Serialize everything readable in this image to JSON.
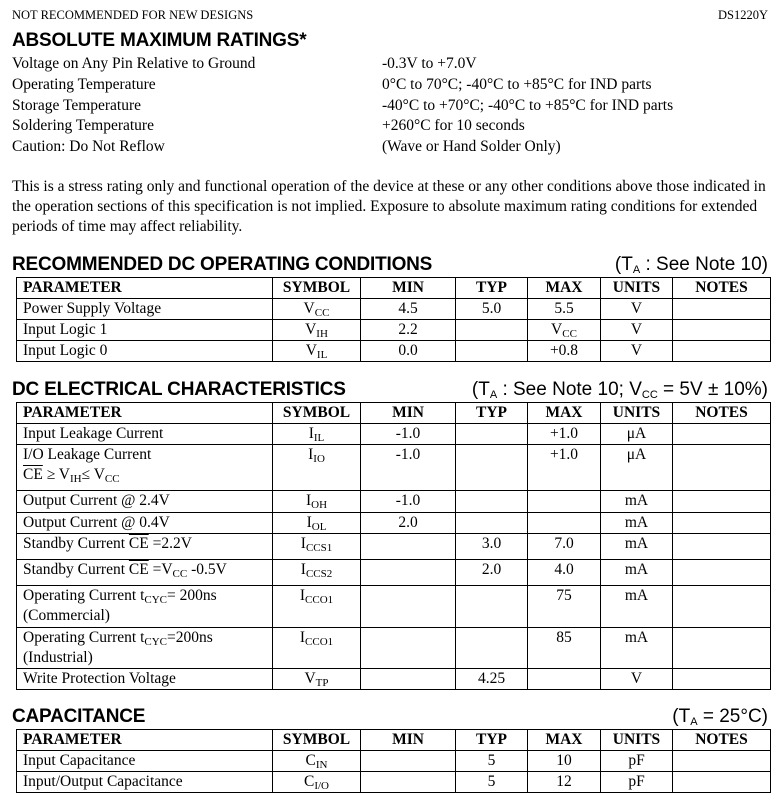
{
  "header": {
    "left": "NOT RECOMMENDED FOR NEW DESIGNS",
    "right": "DS1220Y"
  },
  "abs_max": {
    "title": "ABSOLUTE MAXIMUM RATINGS*",
    "rows": [
      {
        "k": "Voltage on Any Pin Relative to Ground",
        "v": "-0.3V to +7.0V"
      },
      {
        "k": "Operating Temperature",
        "v": "0°C to 70°C; -40°C to +85°C for IND parts"
      },
      {
        "k": "Storage Temperature",
        "v": "-40°C to +70°C; -40°C to +85°C for IND parts"
      },
      {
        "k": "Soldering Temperature",
        "v": "+260°C for 10 seconds"
      },
      {
        "k": "Caution: Do Not Reflow",
        "v": "(Wave or Hand Solder Only)"
      }
    ],
    "note": "This is a stress rating only and functional operation of the device at these or any other conditions above those indicated in the operation sections of this specification is not implied. Exposure to absolute maximum rating conditions for extended periods of time may affect reliability."
  },
  "columns": [
    "PARAMETER",
    "SYMBOL",
    "MIN",
    "TYP",
    "MAX",
    "UNITS",
    "NOTES"
  ],
  "tables": [
    {
      "title": "RECOMMENDED DC OPERATING CONDITIONS",
      "cond": [
        {
          "t": "(T"
        },
        {
          "t": "A",
          "sub": 1
        },
        {
          "t": " : See Note 10)"
        }
      ],
      "rows": [
        [
          [
            {
              "t": "Power Supply Voltage"
            }
          ],
          [
            {
              "t": "V"
            },
            {
              "t": "CC",
              "sub": 1
            }
          ],
          [
            {
              "t": "4.5"
            }
          ],
          [
            {
              "t": "5.0"
            }
          ],
          [
            {
              "t": "5.5"
            }
          ],
          [
            {
              "t": "V"
            }
          ],
          []
        ],
        [
          [
            {
              "t": "Input Logic 1"
            }
          ],
          [
            {
              "t": "V"
            },
            {
              "t": "IH",
              "sub": 1
            }
          ],
          [
            {
              "t": "2.2"
            }
          ],
          [],
          [
            {
              "t": "V"
            },
            {
              "t": "CC",
              "sub": 1
            }
          ],
          [
            {
              "t": "V"
            }
          ],
          []
        ],
        [
          [
            {
              "t": "Input Logic 0"
            }
          ],
          [
            {
              "t": "V"
            },
            {
              "t": "IL",
              "sub": 1
            }
          ],
          [
            {
              "t": "0.0"
            }
          ],
          [],
          [
            {
              "t": "+0.8"
            }
          ],
          [
            {
              "t": "V"
            }
          ],
          []
        ]
      ]
    },
    {
      "title": "DC ELECTRICAL CHARACTERISTICS",
      "cond": [
        {
          "t": "(T"
        },
        {
          "t": "A",
          "sub": 1
        },
        {
          "t": " : See Note 10; V"
        },
        {
          "t": "CC",
          "sub": 1
        },
        {
          "t": " = 5V ± 10%)"
        }
      ],
      "rows": [
        [
          [
            {
              "t": "Input Leakage Current"
            }
          ],
          [
            {
              "t": "I"
            },
            {
              "t": "IL",
              "sub": 1
            }
          ],
          [
            {
              "t": "-1.0"
            }
          ],
          [],
          [
            {
              "t": "+1.0"
            }
          ],
          [
            {
              "t": "μA"
            }
          ],
          []
        ],
        [
          [
            {
              "t": "I/O Leakage Current"
            },
            {
              "br": 1
            },
            {
              "t": "CE",
              "ov": 1
            },
            {
              "t": " ≥ V"
            },
            {
              "t": "IH",
              "sub": 1
            },
            {
              "t": "≤ V"
            },
            {
              "t": "CC",
              "sub": 1
            }
          ],
          [
            {
              "t": "I"
            },
            {
              "t": "IO",
              "sub": 1
            }
          ],
          [
            {
              "t": "-1.0"
            }
          ],
          [],
          [
            {
              "t": "+1.0"
            }
          ],
          [
            {
              "t": "μA"
            }
          ],
          []
        ],
        [
          [
            {
              "t": "Output Current @ 2.4V"
            }
          ],
          [
            {
              "t": "I"
            },
            {
              "t": "OH",
              "sub": 1
            }
          ],
          [
            {
              "t": "-1.0"
            }
          ],
          [],
          [],
          [
            {
              "t": "mA"
            }
          ],
          []
        ],
        [
          [
            {
              "t": "Output Current @ 0.4V"
            }
          ],
          [
            {
              "t": "I"
            },
            {
              "t": "OL",
              "sub": 1
            }
          ],
          [
            {
              "t": "2.0"
            }
          ],
          [],
          [],
          [
            {
              "t": "mA"
            }
          ],
          []
        ],
        [
          [
            {
              "t": "Standby Current "
            },
            {
              "t": "CE",
              "ov": 1
            },
            {
              "t": " =2.2V"
            }
          ],
          [
            {
              "t": "I"
            },
            {
              "t": "CCS1",
              "sub": 1
            }
          ],
          [],
          [
            {
              "t": "3.0"
            }
          ],
          [
            {
              "t": "7.0"
            }
          ],
          [
            {
              "t": "mA"
            }
          ],
          []
        ],
        [
          [
            {
              "t": "Standby Current "
            },
            {
              "t": "CE",
              "ov": 1
            },
            {
              "t": " =V"
            },
            {
              "t": "CC",
              "sub": 1
            },
            {
              "t": " -0.5V"
            }
          ],
          [
            {
              "t": "I"
            },
            {
              "t": "CCS2",
              "sub": 1
            }
          ],
          [],
          [
            {
              "t": "2.0"
            }
          ],
          [
            {
              "t": "4.0"
            }
          ],
          [
            {
              "t": "mA"
            }
          ],
          []
        ],
        [
          [
            {
              "t": "Operating Current t"
            },
            {
              "t": "CYC",
              "sub": 1
            },
            {
              "t": "= 200ns"
            },
            {
              "br": 1
            },
            {
              "t": "(Commercial)"
            }
          ],
          [
            {
              "t": "I"
            },
            {
              "t": "CCO1",
              "sub": 1
            }
          ],
          [],
          [],
          [
            {
              "t": "75"
            }
          ],
          [
            {
              "t": "mA"
            }
          ],
          []
        ],
        [
          [
            {
              "t": "Operating Current t"
            },
            {
              "t": "CYC",
              "sub": 1
            },
            {
              "t": "=200ns"
            },
            {
              "br": 1
            },
            {
              "t": "(Industrial)"
            }
          ],
          [
            {
              "t": "I"
            },
            {
              "t": "CCO1",
              "sub": 1
            }
          ],
          [],
          [],
          [
            {
              "t": "85"
            }
          ],
          [
            {
              "t": "mA"
            }
          ],
          []
        ],
        [
          [
            {
              "t": "Write Protection Voltage"
            }
          ],
          [
            {
              "t": "V"
            },
            {
              "t": "TP",
              "sub": 1
            }
          ],
          [],
          [
            {
              "t": "4.25"
            }
          ],
          [],
          [
            {
              "t": "V"
            }
          ],
          []
        ]
      ]
    },
    {
      "title": "CAPACITANCE",
      "cond": [
        {
          "t": "(T"
        },
        {
          "t": "A",
          "sub": 1
        },
        {
          "t": " = 25°C)"
        }
      ],
      "rows": [
        [
          [
            {
              "t": "Input Capacitance"
            }
          ],
          [
            {
              "t": "C"
            },
            {
              "t": "IN",
              "sub": 1
            }
          ],
          [],
          [
            {
              "t": "5"
            }
          ],
          [
            {
              "t": "10"
            }
          ],
          [
            {
              "t": "pF"
            }
          ],
          []
        ],
        [
          [
            {
              "t": "Input/Output Capacitance"
            }
          ],
          [
            {
              "t": "C"
            },
            {
              "t": "I/O",
              "sub": 1
            }
          ],
          [],
          [
            {
              "t": "5"
            }
          ],
          [
            {
              "t": "12"
            }
          ],
          [
            {
              "t": "pF"
            }
          ],
          []
        ]
      ]
    }
  ]
}
